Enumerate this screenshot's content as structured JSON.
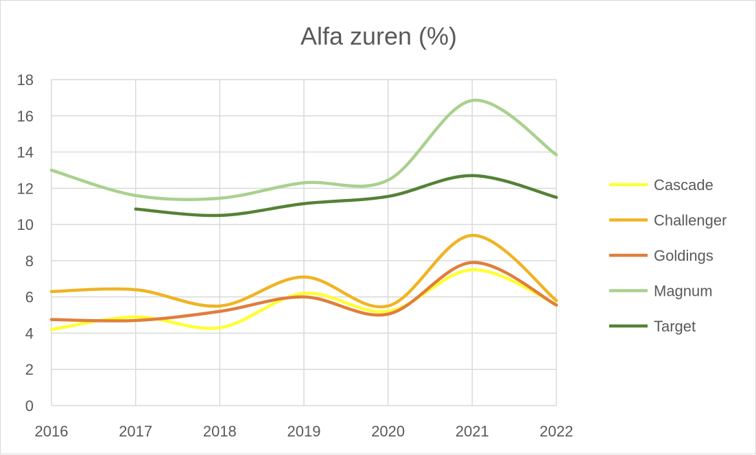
{
  "chart_data": {
    "type": "line",
    "title": "Alfa zuren (%)",
    "xlabel": "",
    "ylabel": "",
    "x": [
      "2016",
      "2017",
      "2018",
      "2019",
      "2020",
      "2021",
      "2022"
    ],
    "ylim": [
      0,
      18
    ],
    "yticks": [
      "0",
      "2",
      "4",
      "6",
      "8",
      "10",
      "12",
      "14",
      "16",
      "18"
    ],
    "grid": "vertical and horizontal",
    "legend_position": "right",
    "smooth": true,
    "series": [
      {
        "name": "Cascade",
        "color": "#ffff33",
        "values": [
          4.2,
          4.9,
          4.3,
          6.2,
          5.2,
          7.5,
          5.6
        ]
      },
      {
        "name": "Challenger",
        "color": "#f0b323",
        "values": [
          6.3,
          6.4,
          5.5,
          7.1,
          5.5,
          9.4,
          5.8
        ]
      },
      {
        "name": "Goldings",
        "color": "#e07e3c",
        "values": [
          4.75,
          4.7,
          5.2,
          6.0,
          5.05,
          7.9,
          5.55
        ]
      },
      {
        "name": "Magnum",
        "color": "#a9d18e",
        "values": [
          13.0,
          11.6,
          11.45,
          12.3,
          12.45,
          16.85,
          13.85
        ]
      },
      {
        "name": "Target",
        "color": "#548235",
        "values": [
          null,
          10.85,
          10.5,
          11.15,
          11.55,
          12.7,
          11.5
        ]
      }
    ]
  }
}
